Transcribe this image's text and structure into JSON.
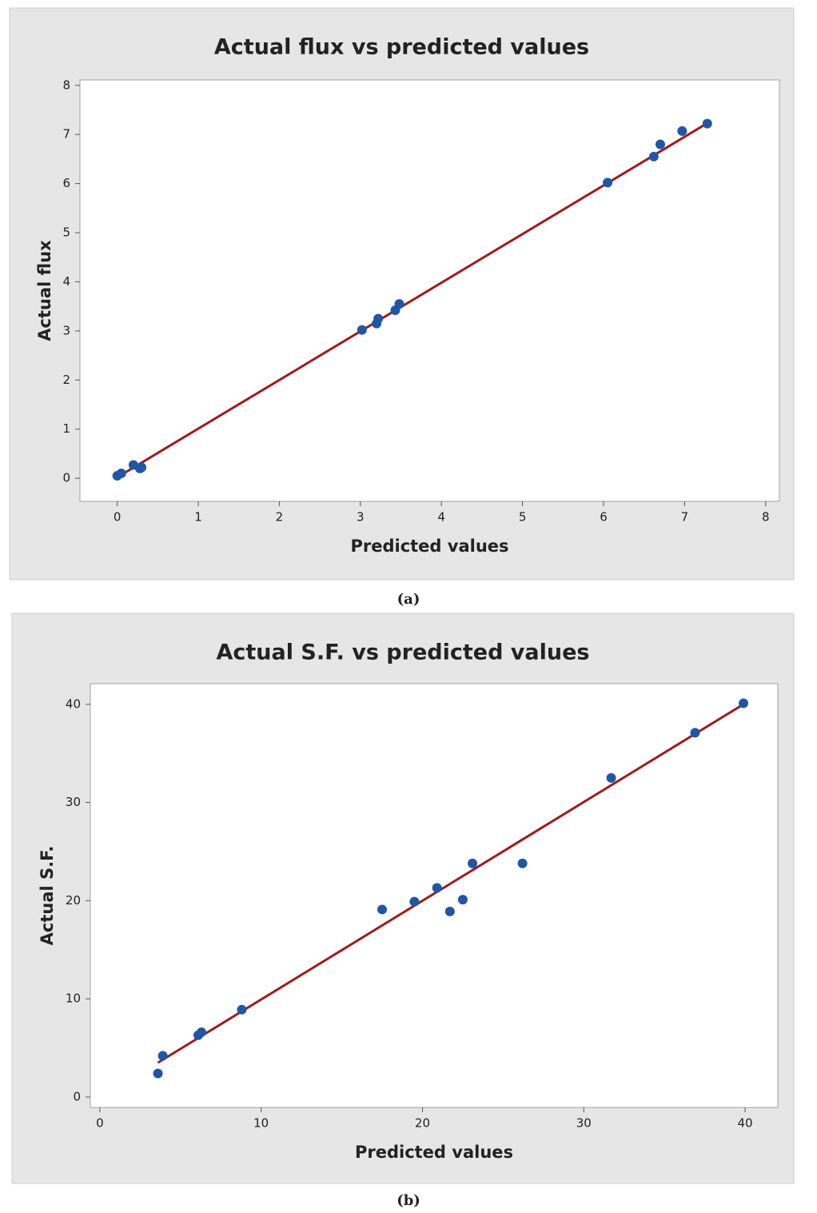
{
  "chart_data": [
    {
      "type": "scatter",
      "title": "Actual flux vs predicted values",
      "x_label": "Predicted values",
      "y_label": "Actual flux",
      "caption": "(a)",
      "x": [
        0.0,
        0.05,
        0.2,
        0.28,
        0.3,
        3.02,
        3.2,
        3.22,
        3.43,
        3.48,
        6.05,
        6.62,
        6.7,
        6.97,
        7.28
      ],
      "series": [
        {
          "color": "#1f57a4",
          "values": [
            0.05,
            0.1,
            0.27,
            0.2,
            0.22,
            3.02,
            3.15,
            3.25,
            3.42,
            3.55,
            6.02,
            6.55,
            6.8,
            7.07,
            7.22
          ]
        }
      ],
      "fit": {
        "color": "#9e1c1c",
        "x": [
          0.0,
          7.28
        ],
        "y": [
          0.02,
          7.23
        ]
      },
      "xlim": [
        -0.46,
        8.17
      ],
      "ylim": [
        -0.47,
        8.11
      ],
      "xticks": [
        0,
        1,
        2,
        3,
        4,
        5,
        6,
        7,
        8
      ],
      "yticks": [
        0,
        1,
        2,
        3,
        4,
        5,
        6,
        7,
        8
      ]
    },
    {
      "type": "scatter",
      "title": "Actual S.F. vs predicted values",
      "x_label": "Predicted values",
      "y_label": "Actual S.F.",
      "caption": "(b)",
      "x": [
        3.6,
        3.9,
        6.1,
        6.3,
        8.8,
        17.5,
        19.5,
        20.9,
        21.7,
        22.5,
        23.1,
        26.2,
        31.7,
        36.9,
        39.9
      ],
      "series": [
        {
          "color": "#1f57a4",
          "values": [
            2.4,
            4.2,
            6.3,
            6.6,
            8.9,
            19.1,
            19.9,
            21.3,
            18.9,
            20.1,
            23.8,
            23.8,
            32.5,
            37.1,
            40.1
          ]
        }
      ],
      "fit": {
        "color": "#9e1c1c",
        "x": [
          3.6,
          39.9
        ],
        "y": [
          3.5,
          40.0
        ]
      },
      "xlim": [
        -0.59,
        42.03
      ],
      "ylim": [
        -1.06,
        42.1
      ],
      "xticks": [
        0,
        10,
        20,
        30,
        40
      ],
      "yticks": [
        0,
        10,
        20,
        30,
        40
      ]
    }
  ]
}
